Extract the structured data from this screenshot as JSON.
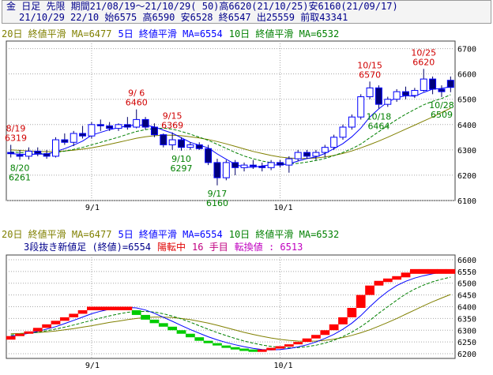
{
  "header": {
    "line1": "金 日足 先限 期間21/08/19～21/10/29( 50)高6620(21/10/25)安6160(21/09/17)",
    "line2": "21/10/29 22/10 始6575 高6590 安6528 終6547 出25559 前取43341"
  },
  "colors": {
    "up": "#0000ff",
    "down": "#00007a",
    "ma20": "#808000",
    "ma5": "#0000ff",
    "ma10": "#008000",
    "peak": "#d00000",
    "trough": "#008000",
    "brick_up": "#ff0000",
    "brick_down": "#00cc00",
    "grid": "#a8a8a8"
  },
  "chart_data": [
    {
      "type": "candlestick",
      "legend": [
        {
          "label": "20日 終値平滑 MA=6477",
          "color": "#808000"
        },
        {
          "label": "5日 終値平滑 MA=6554",
          "color": "#0000ff"
        },
        {
          "label": "10日 終値平滑 MA=6532",
          "color": "#008000"
        }
      ],
      "y_ticks": [
        6100,
        6200,
        6300,
        6400,
        6500,
        6600,
        6700
      ],
      "ylim": [
        6100,
        6730
      ],
      "x_ticks": [
        {
          "label": "9/1",
          "index": 9
        },
        {
          "label": "10/1",
          "index": 30
        }
      ],
      "candles": [
        {
          "o": 6290,
          "h": 6320,
          "l": 6270,
          "c": 6285
        },
        {
          "o": 6280,
          "h": 6300,
          "l": 6261,
          "c": 6275
        },
        {
          "o": 6275,
          "h": 6310,
          "l": 6262,
          "c": 6295
        },
        {
          "o": 6295,
          "h": 6310,
          "l": 6275,
          "c": 6285
        },
        {
          "o": 6285,
          "h": 6300,
          "l": 6265,
          "c": 6275
        },
        {
          "o": 6275,
          "h": 6350,
          "l": 6270,
          "c": 6340
        },
        {
          "o": 6340,
          "h": 6365,
          "l": 6320,
          "c": 6330
        },
        {
          "o": 6330,
          "h": 6375,
          "l": 6315,
          "c": 6365
        },
        {
          "o": 6365,
          "h": 6395,
          "l": 6345,
          "c": 6355
        },
        {
          "o": 6355,
          "h": 6410,
          "l": 6345,
          "c": 6400
        },
        {
          "o": 6400,
          "h": 6420,
          "l": 6375,
          "c": 6395
        },
        {
          "o": 6395,
          "h": 6410,
          "l": 6375,
          "c": 6385
        },
        {
          "o": 6385,
          "h": 6405,
          "l": 6375,
          "c": 6400
        },
        {
          "o": 6400,
          "h": 6430,
          "l": 6380,
          "c": 6390
        },
        {
          "o": 6390,
          "h": 6460,
          "l": 6385,
          "c": 6420
        },
        {
          "o": 6420,
          "h": 6430,
          "l": 6380,
          "c": 6390
        },
        {
          "o": 6390,
          "h": 6405,
          "l": 6350,
          "c": 6360
        },
        {
          "o": 6360,
          "h": 6365,
          "l": 6310,
          "c": 6320
        },
        {
          "o": 6320,
          "h": 6369,
          "l": 6300,
          "c": 6340
        },
        {
          "o": 6340,
          "h": 6350,
          "l": 6297,
          "c": 6310
        },
        {
          "o": 6310,
          "h": 6330,
          "l": 6300,
          "c": 6320
        },
        {
          "o": 6320,
          "h": 6330,
          "l": 6300,
          "c": 6305
        },
        {
          "o": 6305,
          "h": 6320,
          "l": 6240,
          "c": 6250
        },
        {
          "o": 6250,
          "h": 6265,
          "l": 6160,
          "c": 6190
        },
        {
          "o": 6190,
          "h": 6260,
          "l": 6180,
          "c": 6250
        },
        {
          "o": 6250,
          "h": 6260,
          "l": 6200,
          "c": 6230
        },
        {
          "o": 6230,
          "h": 6250,
          "l": 6215,
          "c": 6240
        },
        {
          "o": 6240,
          "h": 6260,
          "l": 6225,
          "c": 6235
        },
        {
          "o": 6235,
          "h": 6250,
          "l": 6215,
          "c": 6230
        },
        {
          "o": 6230,
          "h": 6260,
          "l": 6220,
          "c": 6250
        },
        {
          "o": 6250,
          "h": 6260,
          "l": 6230,
          "c": 6240
        },
        {
          "o": 6240,
          "h": 6275,
          "l": 6210,
          "c": 6265
        },
        {
          "o": 6265,
          "h": 6300,
          "l": 6255,
          "c": 6290
        },
        {
          "o": 6290,
          "h": 6300,
          "l": 6265,
          "c": 6275
        },
        {
          "o": 6275,
          "h": 6300,
          "l": 6260,
          "c": 6290
        },
        {
          "o": 6290,
          "h": 6320,
          "l": 6270,
          "c": 6310
        },
        {
          "o": 6310,
          "h": 6360,
          "l": 6300,
          "c": 6350
        },
        {
          "o": 6350,
          "h": 6400,
          "l": 6340,
          "c": 6390
        },
        {
          "o": 6390,
          "h": 6440,
          "l": 6380,
          "c": 6430
        },
        {
          "o": 6430,
          "h": 6520,
          "l": 6420,
          "c": 6510
        },
        {
          "o": 6510,
          "h": 6570,
          "l": 6500,
          "c": 6545
        },
        {
          "o": 6545,
          "h": 6555,
          "l": 6464,
          "c": 6480
        },
        {
          "o": 6480,
          "h": 6510,
          "l": 6470,
          "c": 6500
        },
        {
          "o": 6500,
          "h": 6540,
          "l": 6490,
          "c": 6530
        },
        {
          "o": 6530,
          "h": 6550,
          "l": 6500,
          "c": 6515
        },
        {
          "o": 6515,
          "h": 6545,
          "l": 6505,
          "c": 6535
        },
        {
          "o": 6535,
          "h": 6620,
          "l": 6530,
          "c": 6580
        },
        {
          "o": 6580,
          "h": 6590,
          "l": 6520,
          "c": 6540
        },
        {
          "o": 6540,
          "h": 6555,
          "l": 6509,
          "c": 6530
        },
        {
          "o": 6575,
          "h": 6590,
          "l": 6528,
          "c": 6547
        }
      ],
      "ma5": [
        6285,
        6283,
        6282,
        6283,
        6283,
        6294,
        6305,
        6319,
        6335,
        6358,
        6369,
        6380,
        6388,
        6395,
        6398,
        6398,
        6391,
        6378,
        6366,
        6348,
        6330,
        6319,
        6308,
        6284,
        6263,
        6243,
        6232,
        6231,
        6237,
        6241,
        6240,
        6245,
        6256,
        6266,
        6272,
        6286,
        6305,
        6325,
        6352,
        6386,
        6430,
        6462,
        6490,
        6506,
        6514,
        6512,
        6527,
        6540,
        6543,
        6550
      ],
      "ma10": [
        6292,
        6290,
        6288,
        6286,
        6285,
        6290,
        6295,
        6302,
        6310,
        6320,
        6330,
        6340,
        6350,
        6362,
        6373,
        6380,
        6384,
        6386,
        6382,
        6373,
        6362,
        6350,
        6338,
        6322,
        6306,
        6290,
        6276,
        6265,
        6256,
        6250,
        6246,
        6245,
        6247,
        6252,
        6258,
        6266,
        6277,
        6290,
        6305,
        6323,
        6348,
        6372,
        6396,
        6420,
        6441,
        6460,
        6478,
        6492,
        6503,
        6518
      ],
      "ma20": [
        6300,
        6298,
        6296,
        6294,
        6293,
        6294,
        6296,
        6299,
        6303,
        6308,
        6315,
        6322,
        6330,
        6338,
        6346,
        6352,
        6356,
        6358,
        6358,
        6356,
        6352,
        6347,
        6341,
        6333,
        6324,
        6314,
        6304,
        6294,
        6286,
        6278,
        6272,
        6268,
        6266,
        6266,
        6268,
        6272,
        6278,
        6286,
        6296,
        6308,
        6321,
        6335,
        6350,
        6366,
        6382,
        6398,
        6414,
        6430,
        6448,
        6465
      ],
      "peaks": [
        {
          "date": "8/19",
          "value": "6319",
          "index": 0
        },
        {
          "date": "9/ 6",
          "value": "6460",
          "index": 14
        },
        {
          "date": "9/15",
          "value": "6369",
          "index": 18
        },
        {
          "date": "10/15",
          "value": "6570",
          "index": 40
        },
        {
          "date": "10/25",
          "value": "6620",
          "index": 46
        }
      ],
      "troughs": [
        {
          "date": "8/20",
          "value": "6261",
          "index": 1
        },
        {
          "date": "9/10",
          "value": "6297",
          "index": 19
        },
        {
          "date": "9/17",
          "value": "6160",
          "index": 23
        },
        {
          "date": "10/18",
          "value": "6464",
          "index": 41
        },
        {
          "date": "10/28",
          "value": "6509",
          "index": 48
        }
      ]
    },
    {
      "type": "three-line-break",
      "legend": [
        {
          "label": "20日 終値平滑 MA=6477",
          "color": "#808000"
        },
        {
          "label": "5日 終値平滑 MA=6554",
          "color": "#0000ff"
        },
        {
          "label": "10日 終値平滑 MA=6532",
          "color": "#008000"
        }
      ],
      "info": {
        "prefix": "3段抜き新値足 (終値)=6554",
        "status": "陽転中",
        "count": "16 手目",
        "turn": "転換値 : 6513"
      },
      "y_ticks": [
        6200,
        6250,
        6300,
        6350,
        6400,
        6450,
        6500,
        6550,
        6600
      ],
      "ylim": [
        6180,
        6620
      ],
      "x_ticks": [
        {
          "label": "9/1",
          "index": 9
        },
        {
          "label": "10/1",
          "index": 30
        }
      ],
      "bricks": [
        {
          "dir": "up",
          "lo": 6260,
          "hi": 6275
        },
        {
          "dir": "up",
          "lo": 6275,
          "hi": 6285
        },
        {
          "dir": "up",
          "lo": 6285,
          "hi": 6295
        },
        {
          "dir": "up",
          "lo": 6295,
          "hi": 6310
        },
        {
          "dir": "up",
          "lo": 6310,
          "hi": 6325
        },
        {
          "dir": "up",
          "lo": 6325,
          "hi": 6340
        },
        {
          "dir": "up",
          "lo": 6340,
          "hi": 6355
        },
        {
          "dir": "up",
          "lo": 6355,
          "hi": 6370
        },
        {
          "dir": "up",
          "lo": 6370,
          "hi": 6385
        },
        {
          "dir": "up",
          "lo": 6385,
          "hi": 6400
        },
        {
          "dir": "up",
          "lo": 6385,
          "hi": 6400
        },
        {
          "dir": "up",
          "lo": 6385,
          "hi": 6400
        },
        {
          "dir": "up",
          "lo": 6385,
          "hi": 6400
        },
        {
          "dir": "up",
          "lo": 6385,
          "hi": 6400
        },
        {
          "dir": "down",
          "lo": 6365,
          "hi": 6385
        },
        {
          "dir": "down",
          "lo": 6345,
          "hi": 6365
        },
        {
          "dir": "down",
          "lo": 6330,
          "hi": 6345
        },
        {
          "dir": "down",
          "lo": 6315,
          "hi": 6330
        },
        {
          "dir": "down",
          "lo": 6300,
          "hi": 6315
        },
        {
          "dir": "down",
          "lo": 6285,
          "hi": 6300
        },
        {
          "dir": "down",
          "lo": 6270,
          "hi": 6285
        },
        {
          "dir": "down",
          "lo": 6255,
          "hi": 6270
        },
        {
          "dir": "down",
          "lo": 6245,
          "hi": 6255
        },
        {
          "dir": "down",
          "lo": 6235,
          "hi": 6245
        },
        {
          "dir": "down",
          "lo": 6225,
          "hi": 6235
        },
        {
          "dir": "down",
          "lo": 6220,
          "hi": 6228
        },
        {
          "dir": "down",
          "lo": 6214,
          "hi": 6222
        },
        {
          "dir": "down",
          "lo": 6210,
          "hi": 6218
        },
        {
          "dir": "up",
          "lo": 6210,
          "hi": 6218
        },
        {
          "dir": "up",
          "lo": 6215,
          "hi": 6225
        },
        {
          "dir": "up",
          "lo": 6222,
          "hi": 6232
        },
        {
          "dir": "up",
          "lo": 6230,
          "hi": 6240
        },
        {
          "dir": "up",
          "lo": 6240,
          "hi": 6250
        },
        {
          "dir": "up",
          "lo": 6250,
          "hi": 6265
        },
        {
          "dir": "up",
          "lo": 6265,
          "hi": 6280
        },
        {
          "dir": "up",
          "lo": 6280,
          "hi": 6300
        },
        {
          "dir": "up",
          "lo": 6300,
          "hi": 6325
        },
        {
          "dir": "up",
          "lo": 6325,
          "hi": 6355
        },
        {
          "dir": "up",
          "lo": 6355,
          "hi": 6395
        },
        {
          "dir": "up",
          "lo": 6395,
          "hi": 6450
        },
        {
          "dir": "up",
          "lo": 6450,
          "hi": 6490
        },
        {
          "dir": "up",
          "lo": 6490,
          "hi": 6510
        },
        {
          "dir": "up",
          "lo": 6505,
          "hi": 6520
        },
        {
          "dir": "up",
          "lo": 6515,
          "hi": 6530
        },
        {
          "dir": "up",
          "lo": 6525,
          "hi": 6545
        },
        {
          "dir": "up",
          "lo": 6540,
          "hi": 6560
        },
        {
          "dir": "up",
          "lo": 6540,
          "hi": 6560
        },
        {
          "dir": "up",
          "lo": 6540,
          "hi": 6560
        },
        {
          "dir": "up",
          "lo": 6540,
          "hi": 6560
        },
        {
          "dir": "up",
          "lo": 6540,
          "hi": 6560
        }
      ],
      "ma5": [
        6275,
        6280,
        6287,
        6295,
        6305,
        6315,
        6328,
        6342,
        6356,
        6370,
        6381,
        6389,
        6394,
        6397,
        6395,
        6386,
        6372,
        6355,
        6338,
        6320,
        6303,
        6287,
        6272,
        6259,
        6248,
        6238,
        6230,
        6223,
        6218,
        6216,
        6218,
        6222,
        6229,
        6238,
        6250,
        6265,
        6282,
        6304,
        6330,
        6362,
        6400,
        6435,
        6465,
        6490,
        6508,
        6522,
        6532,
        6540,
        6546,
        6550
      ],
      "ma10": [
        6280,
        6283,
        6287,
        6292,
        6298,
        6305,
        6313,
        6322,
        6332,
        6342,
        6352,
        6361,
        6369,
        6376,
        6380,
        6380,
        6377,
        6370,
        6360,
        6348,
        6334,
        6319,
        6304,
        6290,
        6277,
        6265,
        6254,
        6245,
        6237,
        6231,
        6227,
        6225,
        6226,
        6230,
        6236,
        6245,
        6257,
        6273,
        6292,
        6315,
        6342,
        6372,
        6400,
        6428,
        6454,
        6475,
        6492,
        6506,
        6517,
        6526
      ],
      "ma20": [
        6285,
        6286,
        6288,
        6290,
        6293,
        6297,
        6302,
        6307,
        6313,
        6319,
        6326,
        6333,
        6339,
        6345,
        6350,
        6354,
        6356,
        6356,
        6354,
        6350,
        6345,
        6338,
        6330,
        6321,
        6311,
        6301,
        6291,
        6282,
        6274,
        6267,
        6261,
        6257,
        6254,
        6253,
        6254,
        6257,
        6262,
        6269,
        6278,
        6289,
        6302,
        6317,
        6333,
        6350,
        6368,
        6386,
        6404,
        6421,
        6437,
        6452
      ]
    }
  ]
}
